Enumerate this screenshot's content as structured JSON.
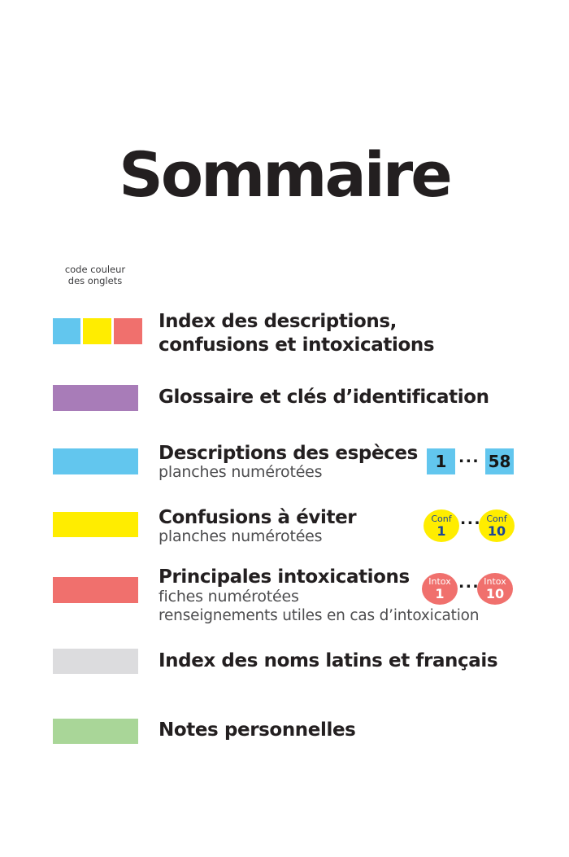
{
  "page": {
    "title": "Sommaire"
  },
  "legend": {
    "caption_line1": "code couleur",
    "caption_line2": "des onglets"
  },
  "palette": {
    "tab_blue": "#62C6EE",
    "tab_yellow": "#FFED00",
    "tab_red": "#F0706D",
    "tab_purple": "#A87CB8",
    "tab_gray": "#DCDCDE",
    "tab_green": "#A9D698",
    "badge_navy_text": "#1D4695",
    "heading_black": "#231F20",
    "subtitle_gray": "#4D4D4F"
  },
  "rows": [
    {
      "swatches": [
        "blue",
        "yellow",
        "red"
      ],
      "title_line1": "Index des descriptions,",
      "title_line2": "confusions et intoxications"
    },
    {
      "swatch": "purple",
      "title": "Glossaire et clés d’identification"
    },
    {
      "swatch": "blue",
      "title": "Descriptions des espèces",
      "subtitle": "planches numérotées",
      "badges": {
        "shape": "square",
        "first": "1",
        "separator": "...",
        "last": "58"
      }
    },
    {
      "swatch": "yellow",
      "title": "Confusions à éviter",
      "subtitle": "planches numérotées",
      "badges": {
        "shape": "ellipse",
        "label": "Conf",
        "first": "1",
        "separator": "...",
        "last": "10"
      }
    },
    {
      "swatch": "red",
      "title": "Principales intoxications",
      "subtitle": "fiches numérotées",
      "note": "renseignements utiles en cas d’intoxication",
      "badges": {
        "shape": "ellipse",
        "label": "Intox",
        "first": "1",
        "separator": "...",
        "last": "10"
      }
    },
    {
      "swatch": "gray",
      "title": "Index des noms latins et français"
    },
    {
      "swatch": "green",
      "title": "Notes personnelles"
    }
  ]
}
